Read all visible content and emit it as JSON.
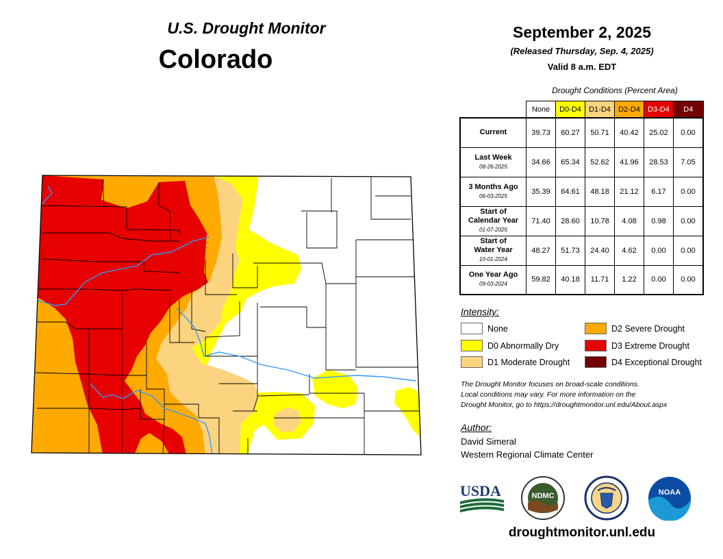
{
  "header": {
    "product": "U.S. Drought Monitor",
    "state": "Colorado",
    "date": "September 2, 2025",
    "released": "(Released Thursday, Sep. 4, 2025)",
    "valid": "Valid 8 a.m. EDT"
  },
  "table": {
    "caption": "Drought Conditions (Percent Area)",
    "columns": [
      "None",
      "D0-D4",
      "D1-D4",
      "D2-D4",
      "D3-D4",
      "D4"
    ],
    "column_colors": [
      "#ffffff",
      "#ffff00",
      "#fcd37f",
      "#ffaa00",
      "#e60000",
      "#730000"
    ],
    "column_text_colors": [
      "#000000",
      "#000000",
      "#000000",
      "#000000",
      "#ffffff",
      "#ffffff"
    ],
    "rows": [
      {
        "label": "Current",
        "sub": "",
        "values": [
          "39.73",
          "60.27",
          "50.71",
          "40.42",
          "25.02",
          "0.00"
        ]
      },
      {
        "label": "Last Week",
        "sub": "08-26-2025",
        "values": [
          "34.66",
          "65.34",
          "52.62",
          "41.96",
          "28.53",
          "7.05"
        ]
      },
      {
        "label": "3 Months Ago",
        "sub": "06-03-2025",
        "values": [
          "35.39",
          "64.61",
          "48.18",
          "21.12",
          "6.17",
          "0.00"
        ]
      },
      {
        "label": "Start of Calendar Year",
        "sub": "01-07-2025",
        "values": [
          "71.40",
          "28.60",
          "10.78",
          "4.08",
          "0.98",
          "0.00"
        ]
      },
      {
        "label": "Start of Water Year",
        "sub": "10-01-2024",
        "values": [
          "48.27",
          "51.73",
          "24.40",
          "4.62",
          "0.00",
          "0.00"
        ]
      },
      {
        "label": "One Year Ago",
        "sub": "09-03-2024",
        "values": [
          "59.82",
          "40.18",
          "11.71",
          "1.22",
          "0.00",
          "0.00"
        ]
      }
    ]
  },
  "legend": {
    "title": "Intensity:",
    "items": [
      {
        "label": "None",
        "color": "#ffffff"
      },
      {
        "label": "D0 Abnormally Dry",
        "color": "#ffff00"
      },
      {
        "label": "D1 Moderate Drought",
        "color": "#fcd37f"
      },
      {
        "label": "D2 Severe Drought",
        "color": "#ffaa00"
      },
      {
        "label": "D3 Extreme Drought",
        "color": "#e60000"
      },
      {
        "label": "D4 Exceptional Drought",
        "color": "#730000"
      }
    ]
  },
  "note": {
    "line1": "The Drought Monitor focuses on broad-scale conditions.",
    "line2": "Local conditions may vary. For more information on the",
    "line3": "Drought Monitor, go to https://droughtmonitor.unl.edu/About.aspx"
  },
  "author": {
    "label": "Author:",
    "name": "David Simeral",
    "org": "Western Regional Climate Center"
  },
  "logos": {
    "usda": "USDA",
    "ndmc": "NDMC",
    "noaa": "NOAA"
  },
  "site": "droughtmonitor.unl.edu",
  "map_colors": {
    "river": "#3399ff",
    "county_line": "#000000"
  }
}
